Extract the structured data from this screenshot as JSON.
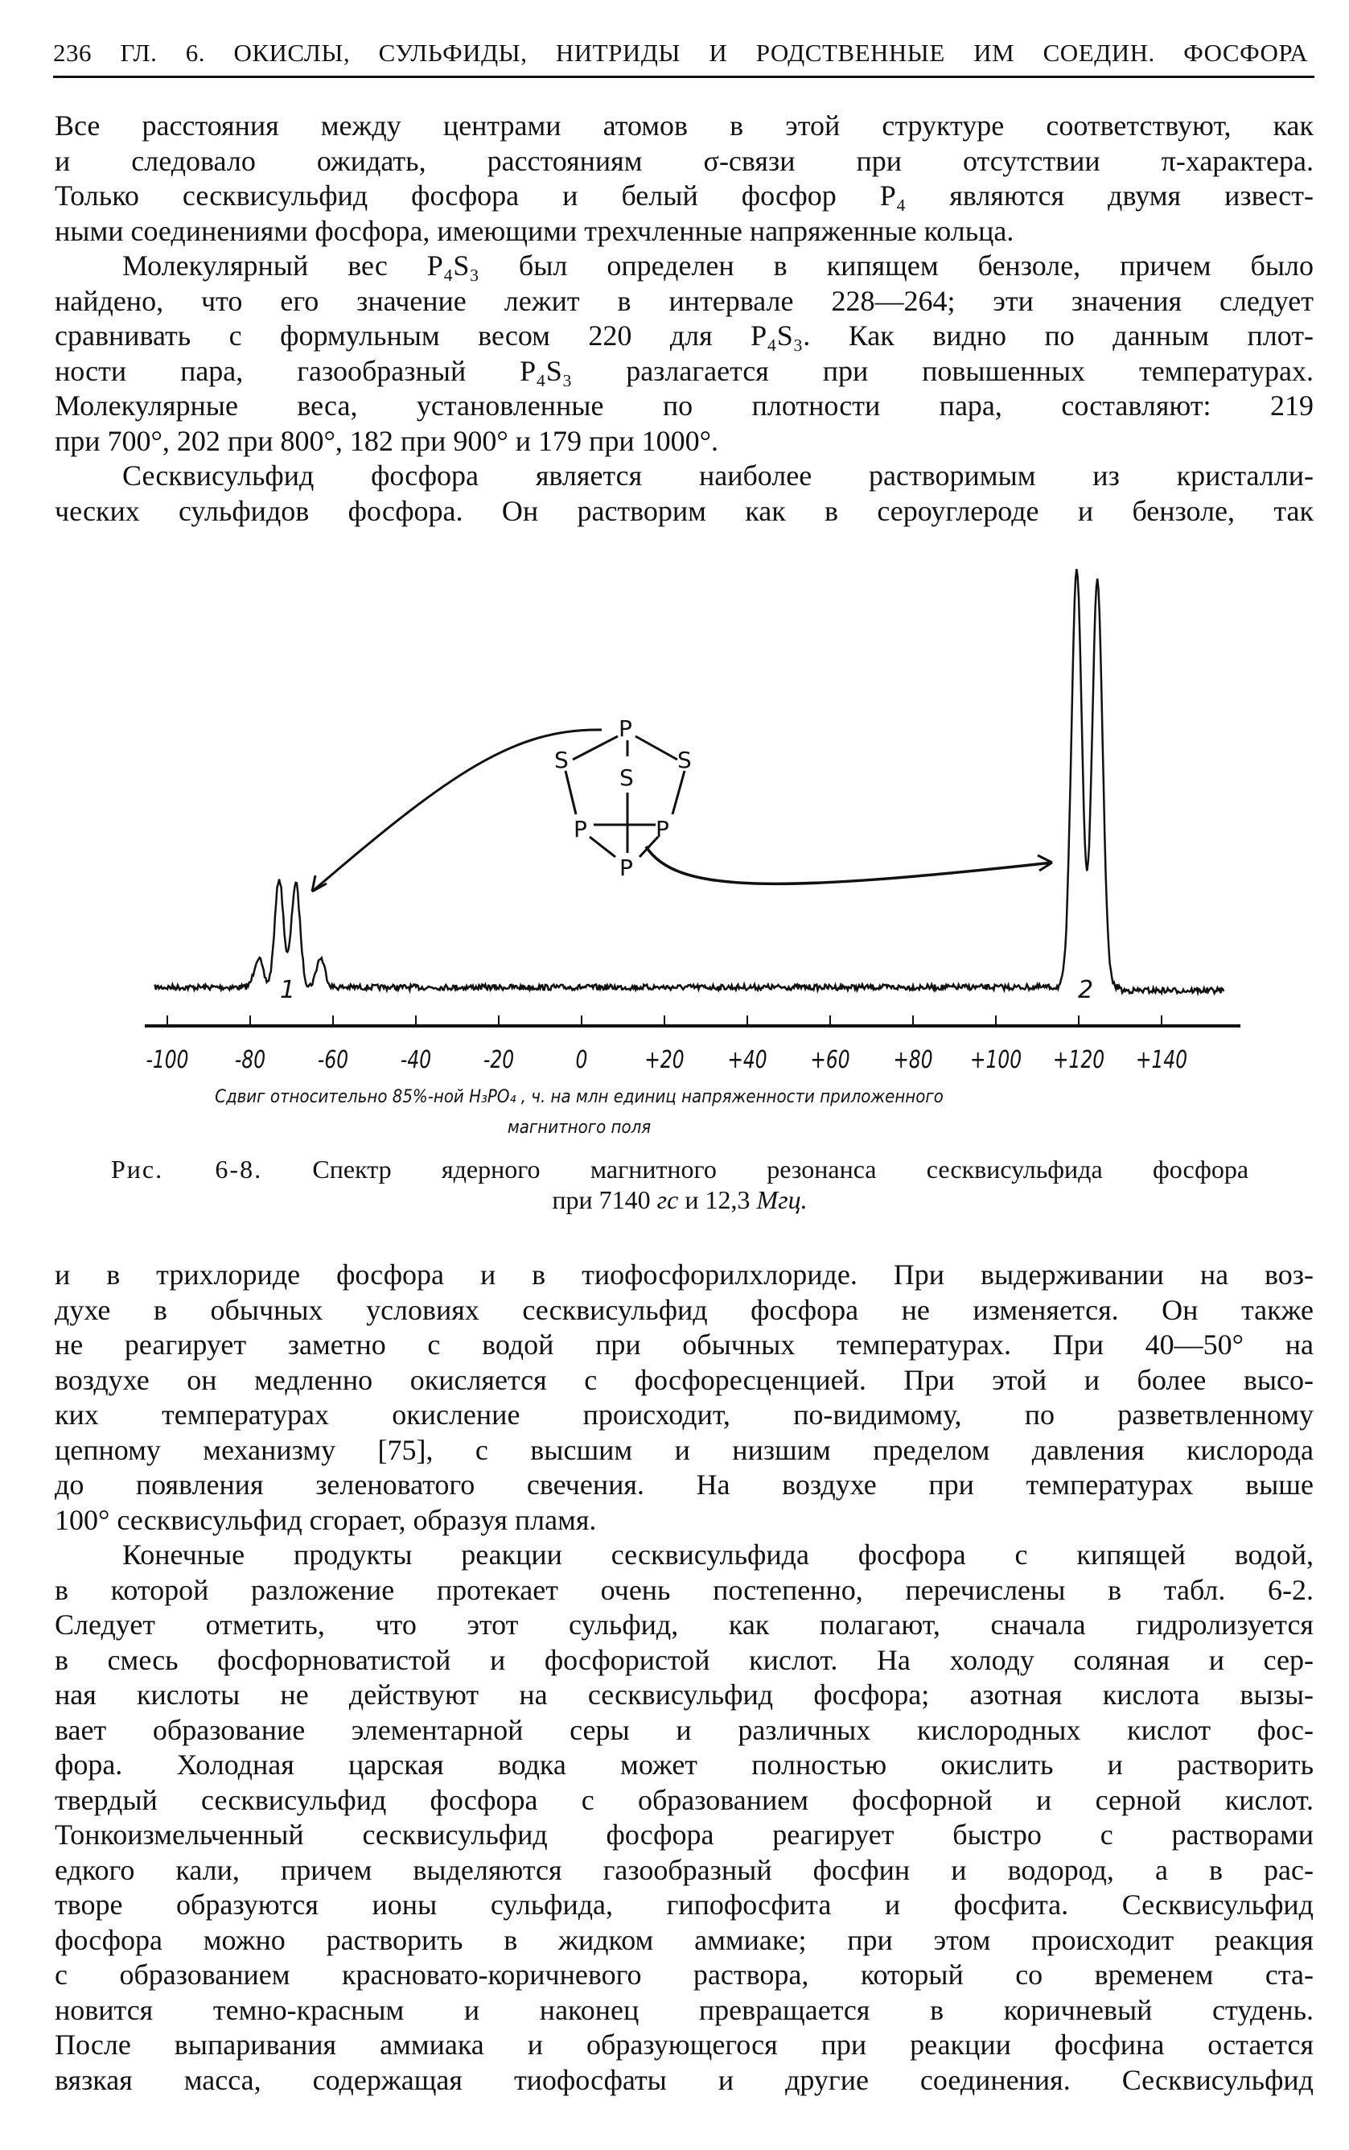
{
  "header": {
    "text": "236 ГЛ. 6. ОКИСЛЫ, СУЛЬФИДЫ, НИТРИДЫ И РОДСТВЕННЫЕ ИМ СОЕДИН. ФОСФОРА"
  },
  "text_before": [
    {
      "lines": [
        "Все расстояния между центрами атомов в этой структуре соответствуют, как",
        "и следовало ожидать, расстояниям σ-связи при отсутствии π-характера.",
        "Только сесквисульфид фосфора и белый фосфор P₄ являются двумя извест-",
        "ными соединениями фосфора, имеющими трехчленные напряженные кольца."
      ],
      "indent": false
    },
    {
      "lines": [
        "Молекулярный вес P₄S₃ был определен в кипящем бензоле, причем было",
        "найдено, что его значение лежит в интервале 228—264; эти значения следует",
        "сравнивать с формульным весом 220 для P₄S₃. Как видно по данным плот-",
        "ности пара, газообразный P₄S₃ разлагается при повышенных температурах.",
        "Молекулярные веса, установленные по плотности пара, составляют: 219",
        "при 700°, 202 при 800°, 182 при 900° и 179 при 1000°."
      ],
      "indent": true
    },
    {
      "lines": [
        "Сесквисульфид фосфора является наиболее растворимым из кристалли-",
        "ческих сульфидов фосфора. Он растворим как в сероуглероде и бензоле, так"
      ],
      "indent": true,
      "continues": true
    }
  ],
  "figure": {
    "molecule_atoms": [
      "P",
      "S",
      "S",
      "S",
      "P",
      "P",
      "P"
    ],
    "caption_prefix": "Рис. 6-8.",
    "caption_line1": "Спектр ядерного магнитного резонанса сесквисульфида фосфора",
    "caption_line2_a": "при 7140 ",
    "caption_line2_unit1": "гс",
    "caption_line2_b": " и 12,3 ",
    "caption_line2_unit2": "Мгц."
  },
  "chart_data": {
    "type": "line",
    "title": "",
    "xlabel_line1": "Сдвиг относительно 85%-ной H₃PO₄ , ч. на млн единиц напряженности приложенного",
    "xlabel_line2": "магнитного поля",
    "xlim": [
      -105,
      150
    ],
    "x_ticks": [
      -100,
      -80,
      -60,
      -40,
      -20,
      0,
      20,
      40,
      60,
      80,
      100,
      120,
      140
    ],
    "x_tick_labels": [
      "-100",
      "-80",
      "-60",
      "-40",
      "-20",
      "0",
      "+20",
      "+40",
      "+60",
      "+80",
      "+100",
      "+120",
      "+140"
    ],
    "peak_labels": [
      "1",
      "2"
    ],
    "peaks": [
      {
        "label": "1",
        "center_ppm": -71,
        "components_ppm": [
          -78,
          -73,
          -69,
          -63
        ],
        "relative_heights": [
          0.07,
          0.26,
          0.25,
          0.07
        ]
      },
      {
        "label": "2",
        "center_ppm": 122,
        "components_ppm": [
          119.5,
          124.5
        ],
        "relative_heights": [
          1.0,
          0.97
        ]
      }
    ],
    "grid": false,
    "color": "#111111"
  },
  "text_after": [
    {
      "lines": [
        "и в трихлориде фосфора и в тиофосфорилхлориде. При выдерживании на воз-",
        "духе в обычных условиях сесквисульфид фосфора не изменяется. Он также",
        "не реагирует заметно с водой при обычных температурах. При 40—50° на",
        "воздухе он медленно окисляется с фосфоресценцией. При этой и более высо-",
        "ких температурах окисление происходит, по-видимому, по разветвленному",
        "цепному механизму [75], с высшим и низшим пределом давления кислорода",
        "до появления зеленоватого свечения. На воздухе при температурах выше",
        "100° сесквисульфид сгорает, образуя пламя."
      ],
      "indent": false
    },
    {
      "lines": [
        "Конечные продукты реакции сесквисульфида фосфора с кипящей водой,",
        "в которой разложение протекает очень постепенно, перечислены в табл. 6-2.",
        "Следует отметить, что этот сульфид, как полагают, сначала гидролизуется",
        "в смесь фосфорноватистой и фосфористой кислот. На холоду соляная и сер-",
        "ная кислоты не действуют на сесквисульфид фосфора; азотная кислота вызы-",
        "вает образование элементарной серы и различных кислородных кислот фос-",
        "фора. Холодная царская водка может полностью окислить и растворить",
        "твердый сесквисульфид фосфора с образованием фосфорной и серной кислот.",
        "Тонкоизмельченный сесквисульфид фосфора реагирует быстро с растворами",
        "едкого кали, причем выделяются газообразный фосфин и водород, а в рас-",
        "творе образуются ионы сульфида, гипофосфита и фосфита. Сесквисульфид",
        "фосфора можно растворить в жидком аммиаке; при этом происходит реакция",
        "с образованием красновато-коричневого раствора, который со временем ста-",
        "новится темно-красным и наконец превращается в коричневый студень.",
        "После выпаривания аммиака и образующегося при реакции фосфина остается",
        "вязкая масса, содержащая тиофосфаты и другие соединения. Сесквисульфид"
      ],
      "indent": true,
      "continues": true
    }
  ]
}
